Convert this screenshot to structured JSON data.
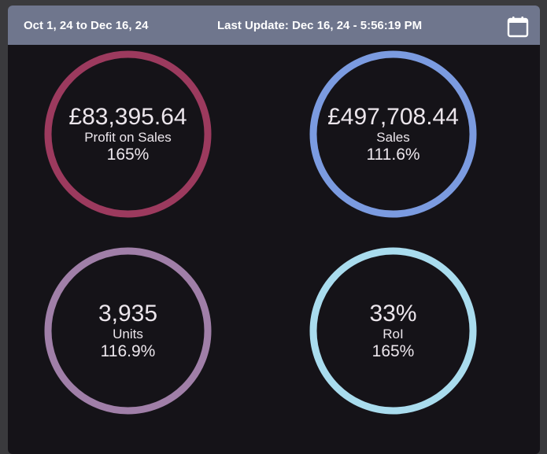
{
  "header": {
    "date_range": "Oct 1, 24 to Dec 16, 24",
    "last_update": "Last Update: Dec 16, 24 - 5:56:19 PM",
    "calendar_icon": "calendar-icon"
  },
  "metrics": [
    {
      "value": "£83,395.64",
      "label": "Profit on Sales",
      "percent": "165%",
      "color": "#9c3a5e"
    },
    {
      "value": "£497,708.44",
      "label": "Sales",
      "percent": "111.6%",
      "color": "#7b9be0"
    },
    {
      "value": "3,935",
      "label": "Units",
      "percent": "116.9%",
      "color": "#a07fa8"
    },
    {
      "value": "33%",
      "label": "RoI",
      "percent": "165%",
      "color": "#a9dcee"
    }
  ]
}
